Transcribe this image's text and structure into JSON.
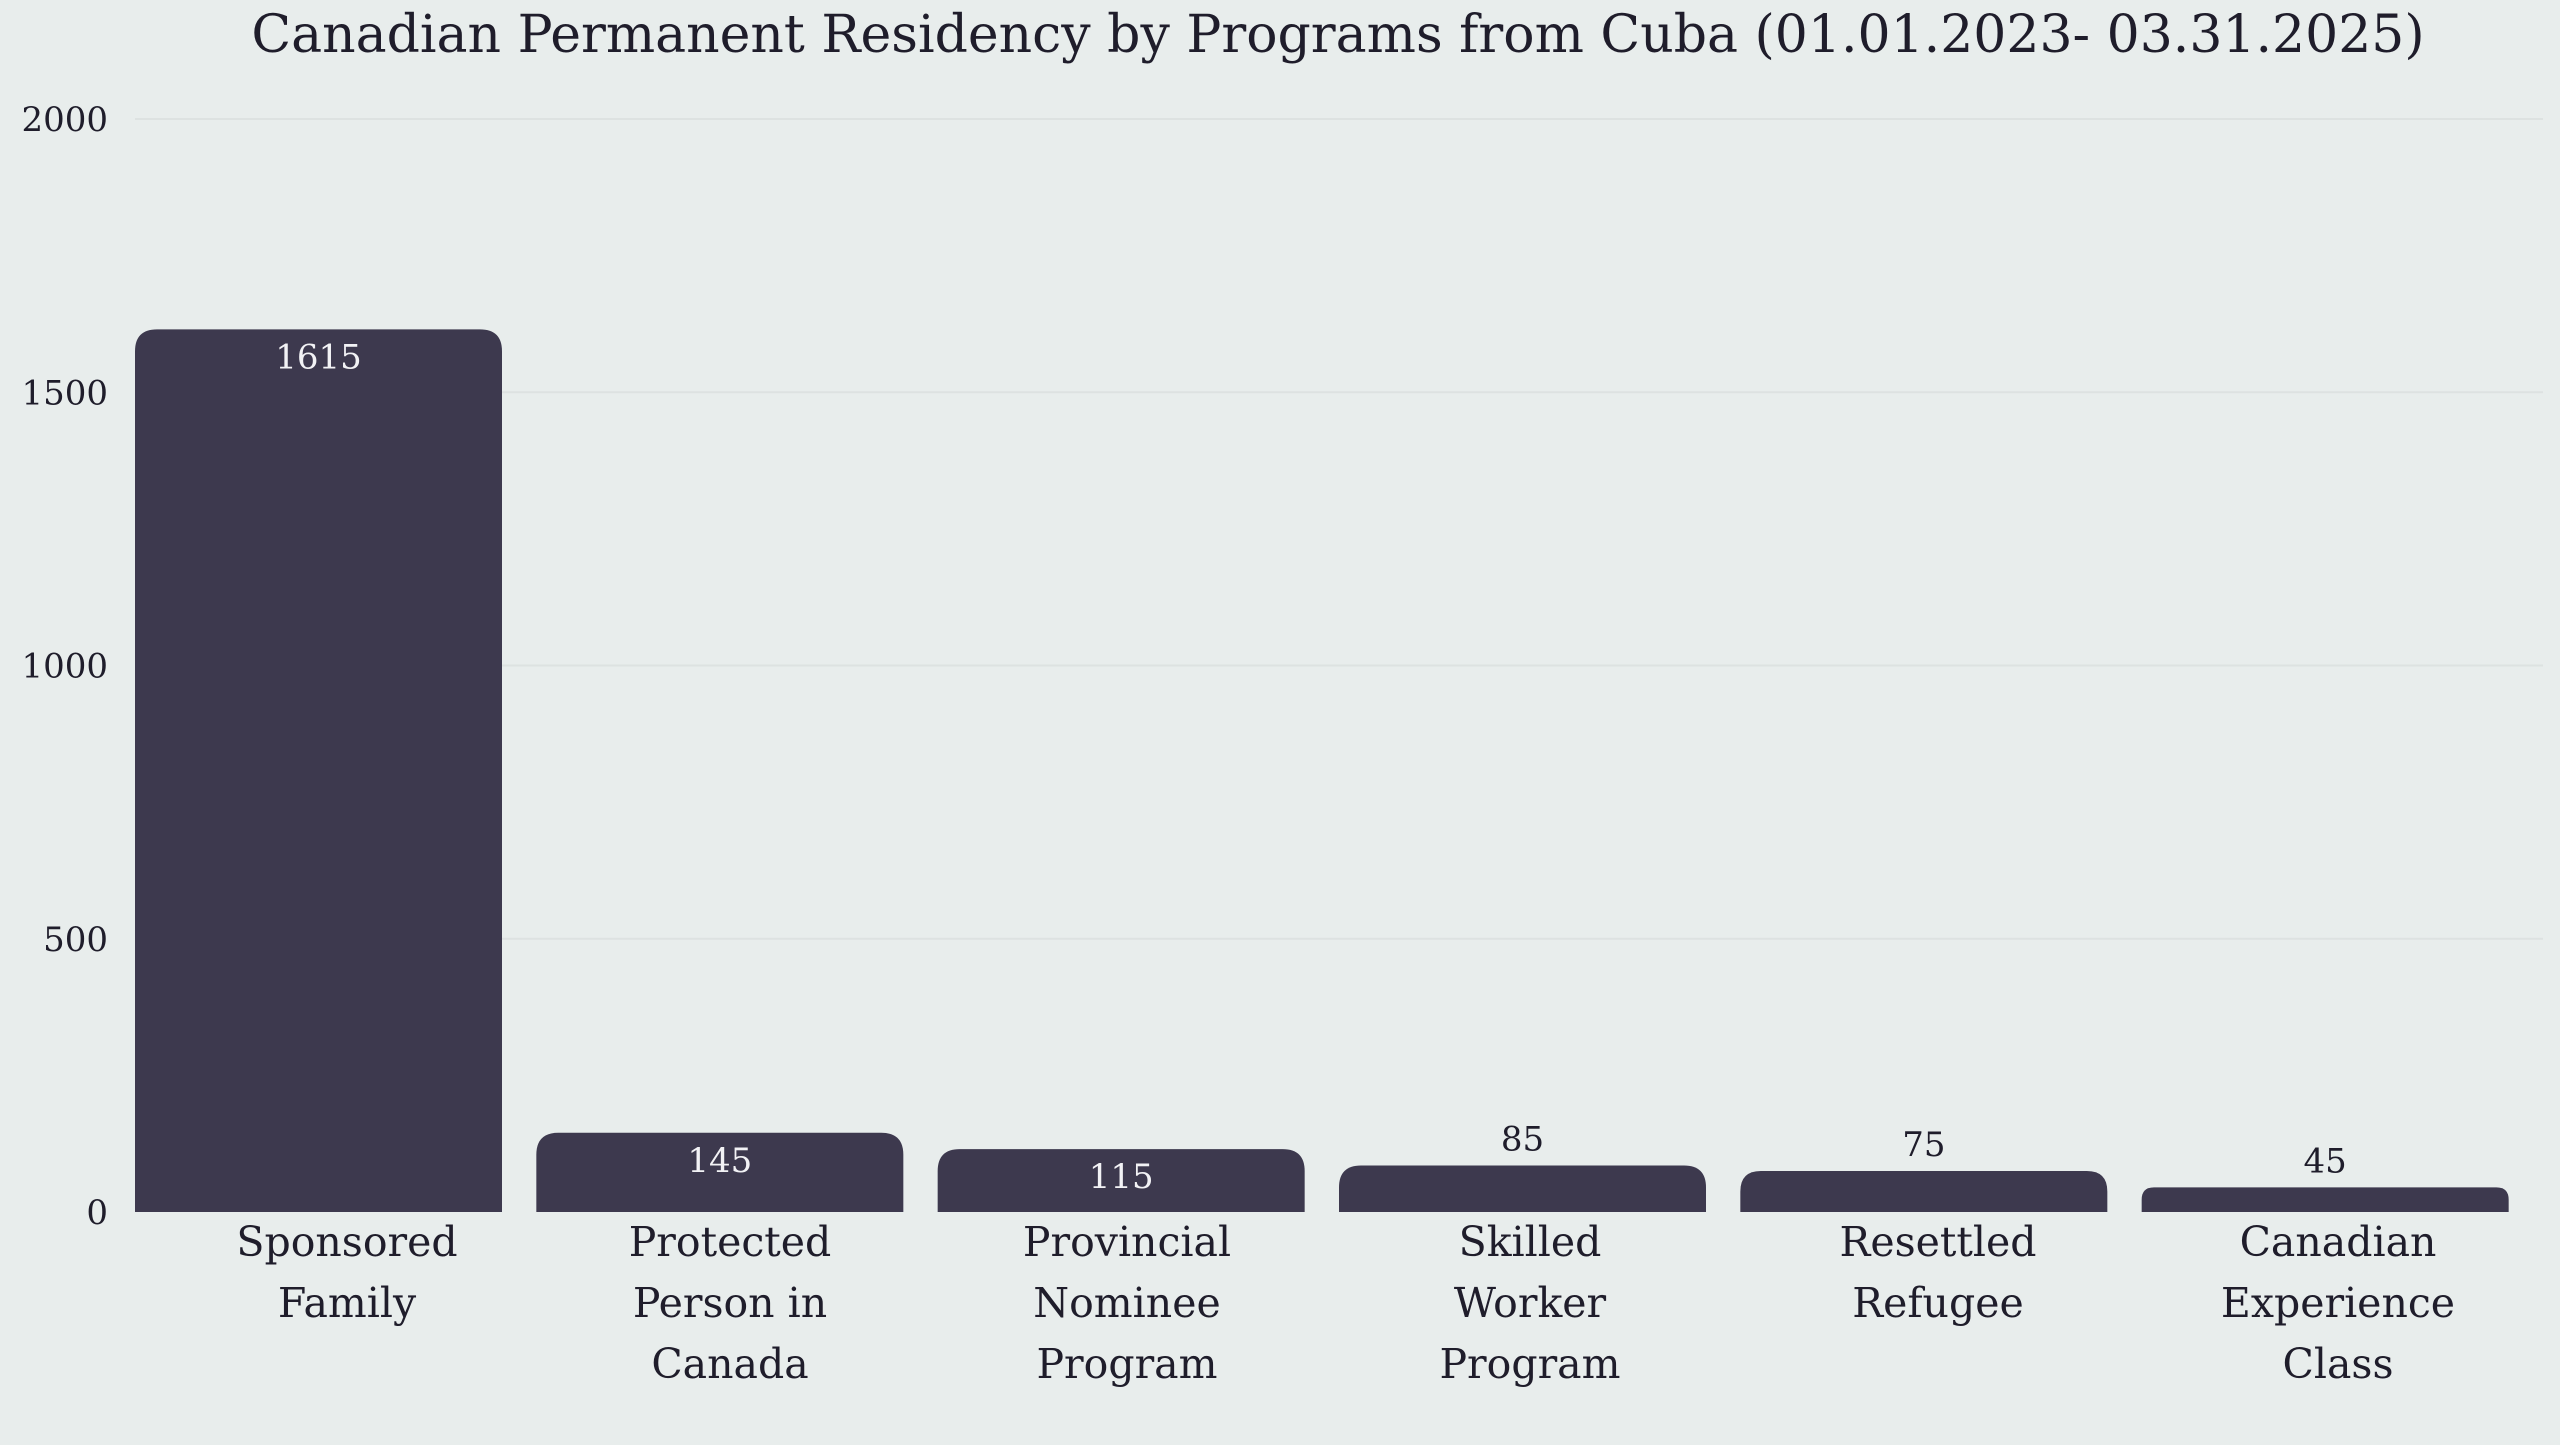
{
  "chart_data": {
    "type": "bar",
    "title": "Canadian Permanent Residency by Programs from Cuba (01.01.2023- 03.31.2025)",
    "xlabel": "",
    "ylabel": "",
    "ylim": [
      0,
      2000
    ],
    "yticks": [
      0,
      500,
      1000,
      1500,
      2000
    ],
    "grid": true,
    "categories": [
      [
        "Sponsored",
        "Family"
      ],
      [
        "Protected",
        "Person in",
        "Canada"
      ],
      [
        "Provincial",
        "Nominee",
        "Program"
      ],
      [
        "Skilled",
        "Worker",
        "Program"
      ],
      [
        "Resettled",
        "Refugee"
      ],
      [
        "Canadian",
        "Experience",
        "Class"
      ]
    ],
    "values": [
      1615,
      145,
      115,
      85,
      75,
      45
    ],
    "colors": {
      "bar": "#3d394e",
      "background": "#e8edec",
      "text": "#1f1d2b",
      "label_inside": "#f2f2f5"
    }
  }
}
